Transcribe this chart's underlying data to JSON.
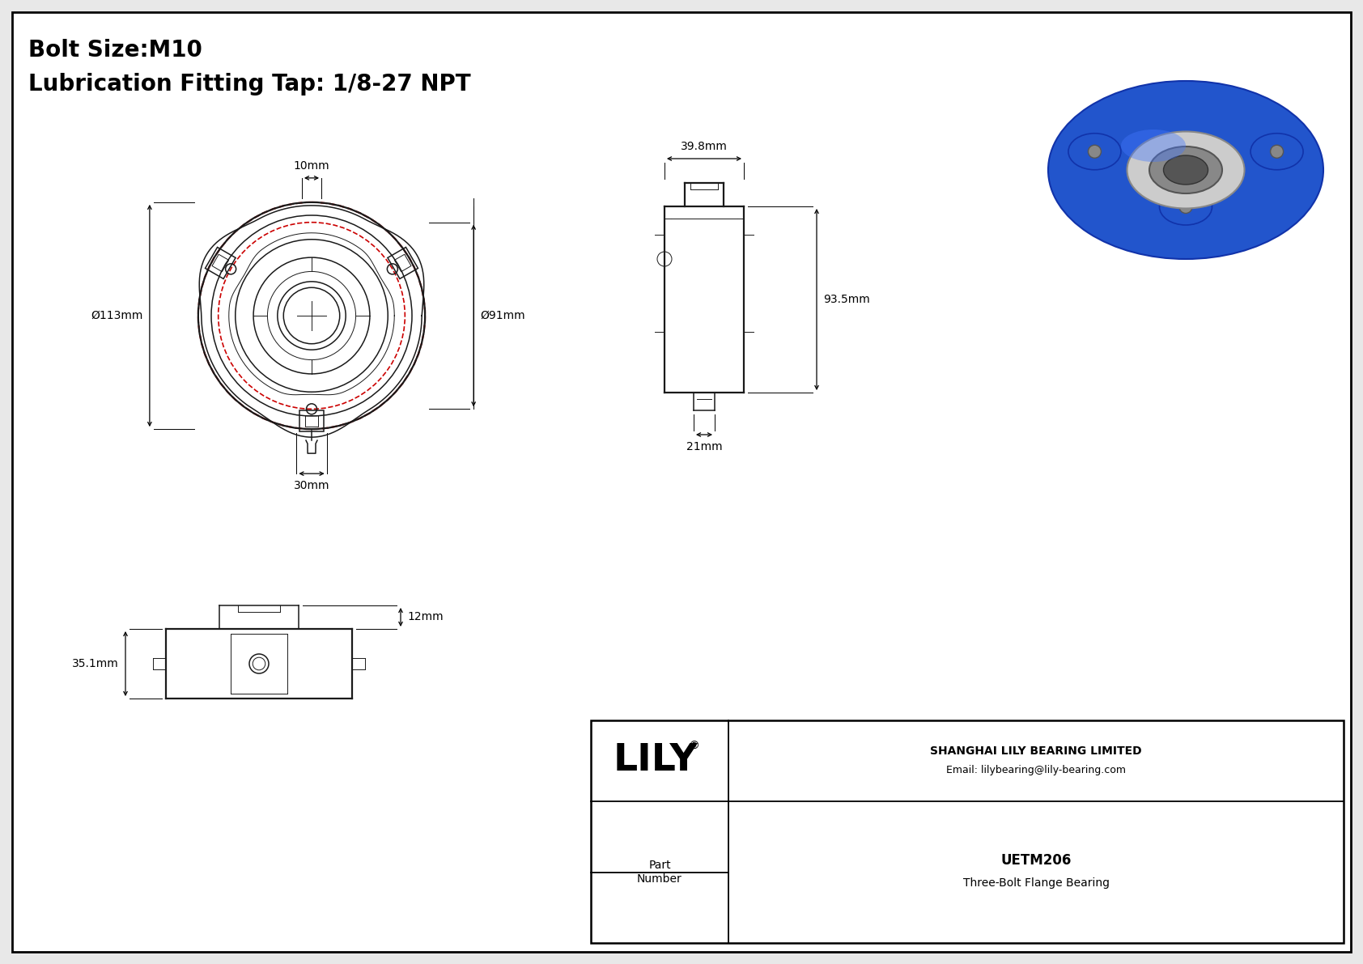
{
  "bg_color": "#e8e8e8",
  "inner_bg": "#ffffff",
  "border_color": "#000000",
  "title_line1": "Bolt Size:M10",
  "title_line2": "Lubrication Fitting Tap: 1/8-27 NPT",
  "dim_10mm": "10mm",
  "dim_113mm": "Ø113mm",
  "dim_91mm": "Ø91mm",
  "dim_30mm": "30mm",
  "dim_39_8mm": "39.8mm",
  "dim_93_5mm": "93.5mm",
  "dim_21mm": "21mm",
  "dim_35_1mm": "35.1mm",
  "dim_12mm": "12mm",
  "company": "SHANGHAI LILY BEARING LIMITED",
  "email": "Email: lilybearing@lily-bearing.com",
  "part_label": "Part\nNumber",
  "part_number": "UETM206",
  "part_desc": "Three-Bolt Flange Bearing",
  "lily_text": "LILY",
  "lily_reg": "®",
  "line_color": "#1a1a1a",
  "red_color": "#cc0000",
  "dim_color": "#000000",
  "thin_lw": 0.7,
  "med_lw": 1.1,
  "thick_lw": 1.6
}
